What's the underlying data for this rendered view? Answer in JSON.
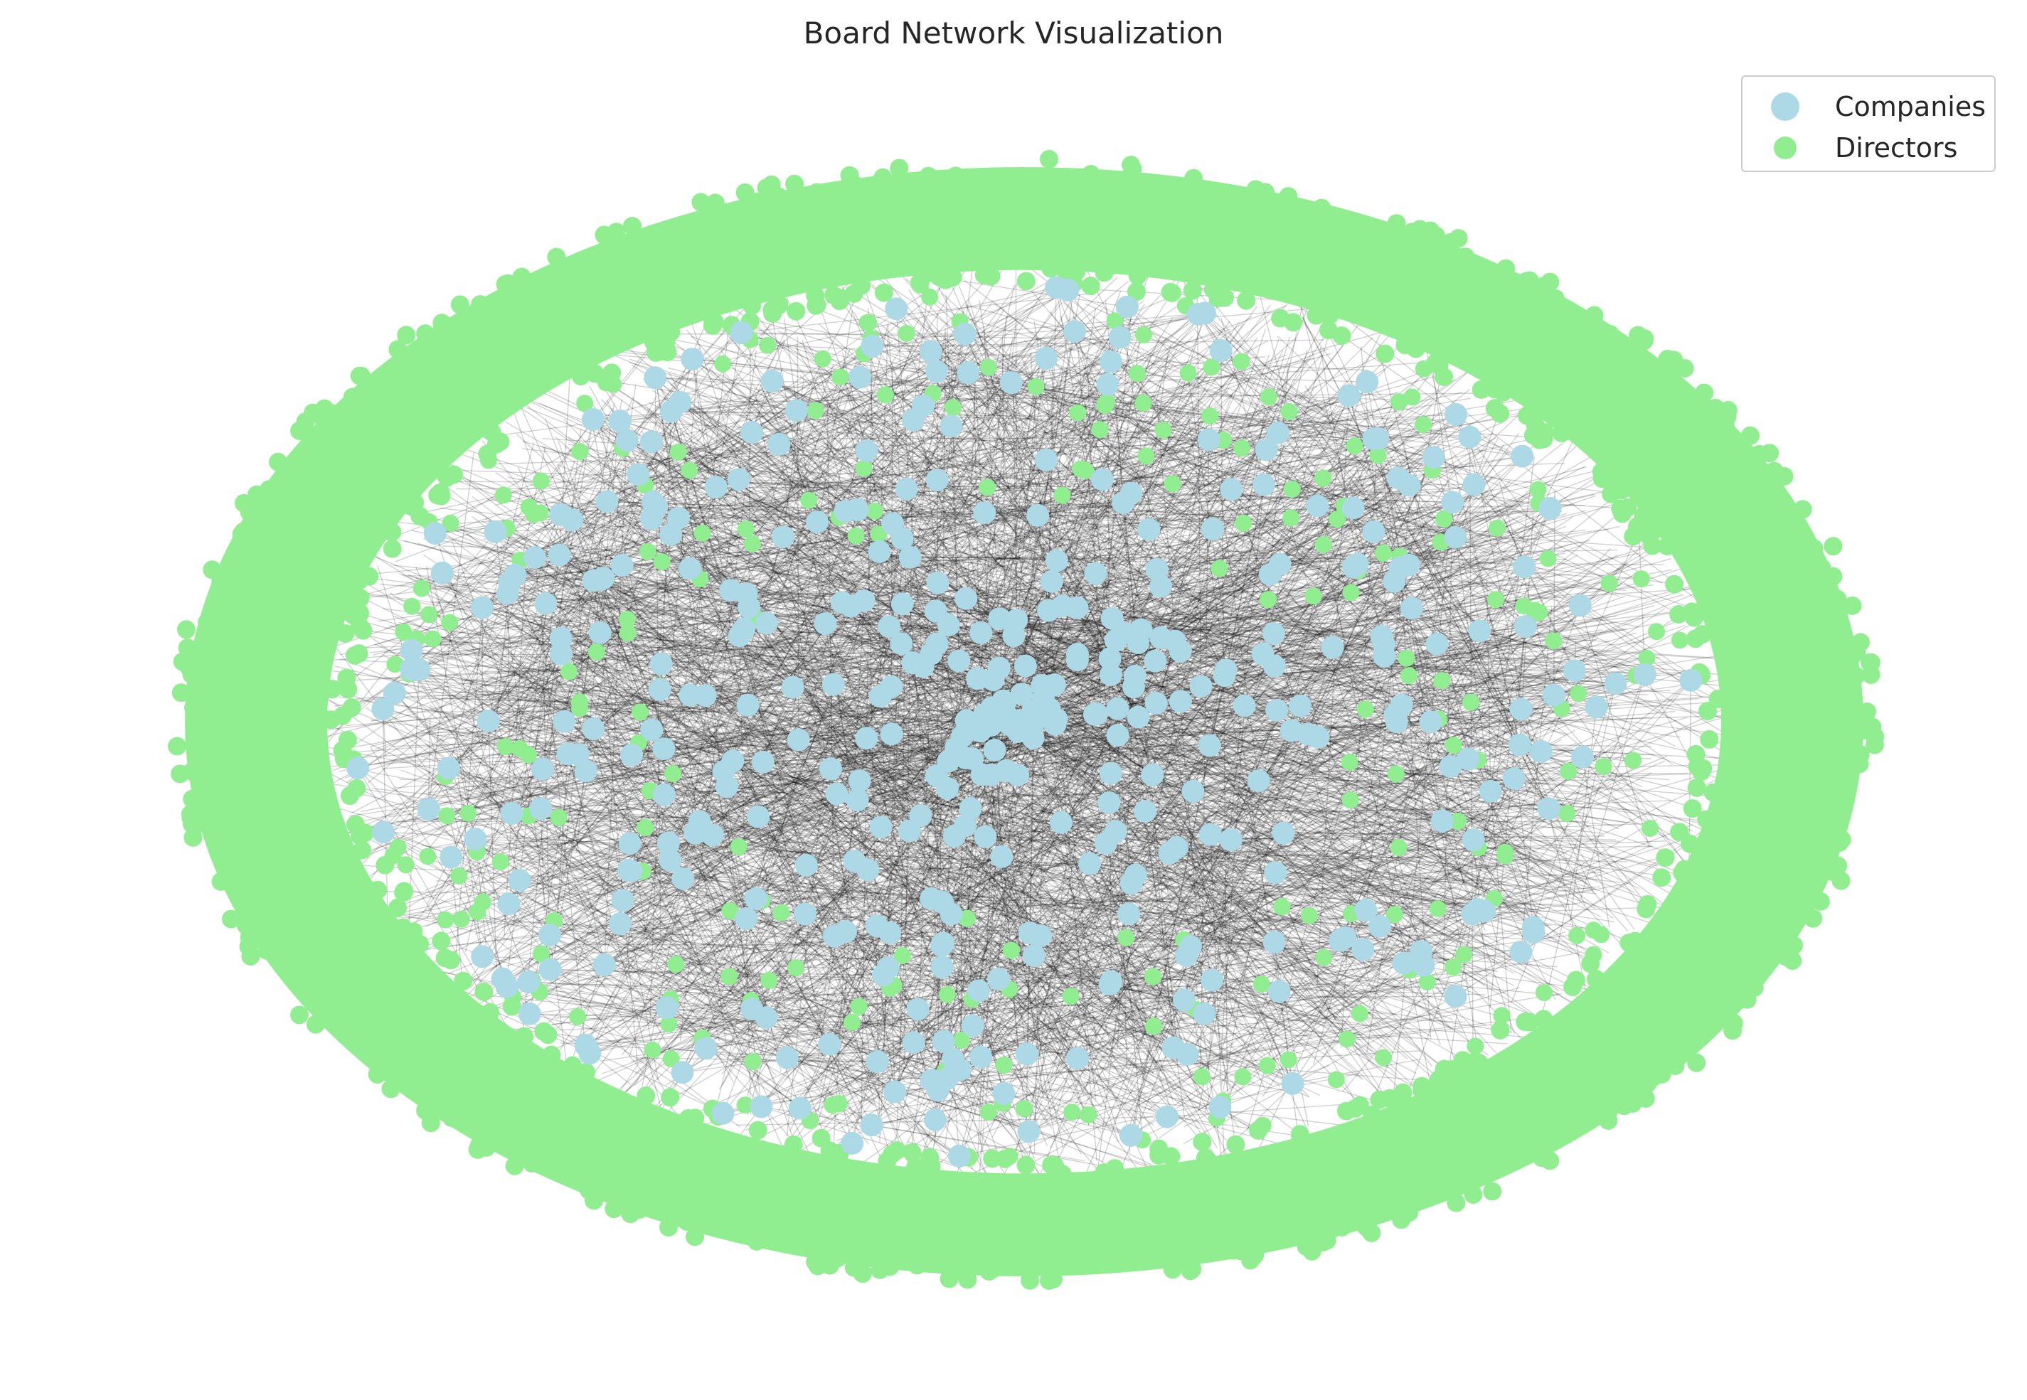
{
  "title": "Board Network Visualization",
  "colors": {
    "companies": "#add8e6",
    "directors": "#90ee90",
    "edges": "#000000"
  },
  "legend": [
    {
      "label": "Companies",
      "color_key": "companies"
    },
    {
      "label": "Directors",
      "color_key": "directors"
    }
  ]
}
